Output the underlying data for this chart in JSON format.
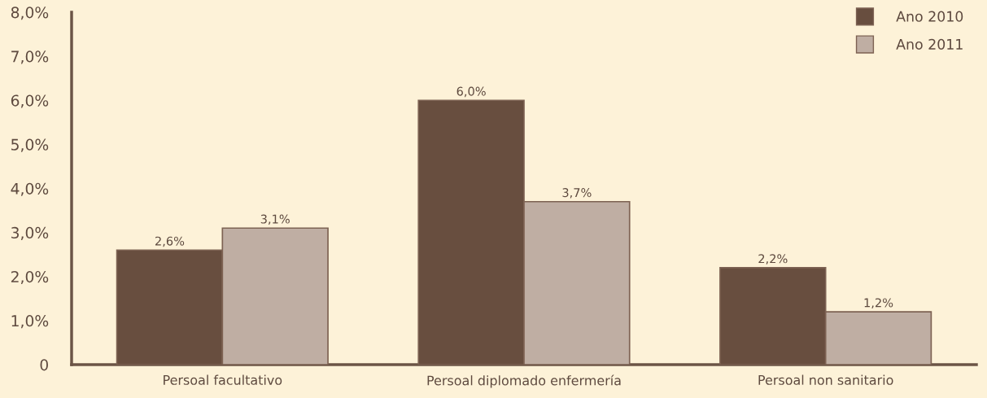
{
  "chart_data": {
    "type": "bar",
    "categories": [
      "Persoal facultativo",
      "Persoal diplomado enfermería",
      "Persoal non sanitario"
    ],
    "series": [
      {
        "name": "Ano 2010",
        "color": "#684e3f",
        "values": [
          2.6,
          6.0,
          2.2
        ],
        "value_labels": [
          "2,6%",
          "6,0%",
          "2,2%"
        ]
      },
      {
        "name": "Ano 2011",
        "color": "#bfaea3",
        "values": [
          3.1,
          3.7,
          1.2
        ],
        "value_labels": [
          "3,1%",
          "3,7%",
          "1,2%"
        ]
      }
    ],
    "ylim": [
      0,
      8
    ],
    "yticks": [
      0,
      {
        "value": 1,
        "label": "1,0%"
      },
      {
        "value": 2,
        "label": "2,0%"
      },
      {
        "value": 3,
        "label": "3,0%"
      },
      {
        "value": 4,
        "label": "4,0%"
      },
      {
        "value": 5,
        "label": "5,0%"
      },
      {
        "value": 6,
        "label": "6,0%"
      },
      {
        "value": 7,
        "label": "7,0%"
      },
      {
        "value": 8,
        "label": "8,0%"
      }
    ],
    "grid": false,
    "legend": "top right"
  }
}
